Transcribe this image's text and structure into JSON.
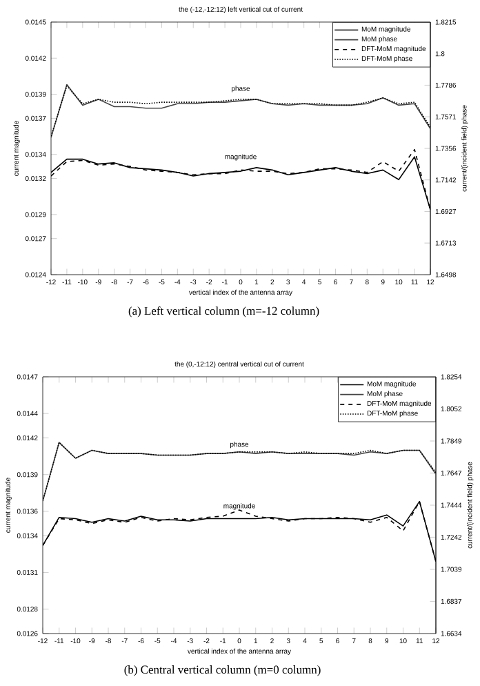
{
  "chart_data": [
    {
      "type": "line",
      "title": "the (-12,-12:12) left vertical cut of current",
      "xlabel": "vertical index of the antenna array",
      "ylabel": "current magnitude",
      "y2label": "current/(incident field) phase",
      "x": [
        -12,
        -11,
        -10,
        -9,
        -8,
        -7,
        -6,
        -5,
        -4,
        -3,
        -2,
        -1,
        0,
        1,
        2,
        3,
        4,
        5,
        6,
        7,
        8,
        9,
        10,
        11,
        12
      ],
      "xlim": [
        -12,
        12
      ],
      "xticks": [
        -12,
        -11,
        -10,
        -9,
        -8,
        -7,
        -6,
        -5,
        -4,
        -3,
        -2,
        -1,
        0,
        1,
        2,
        3,
        4,
        5,
        6,
        7,
        8,
        9,
        10,
        11,
        12
      ],
      "ylim": [
        0.0124,
        0.0145
      ],
      "yticks": [
        0.0124,
        0.0127,
        0.0129,
        0.0132,
        0.0134,
        0.0137,
        0.0139,
        0.0142,
        0.0145
      ],
      "y2lim": [
        1.6498,
        1.8215
      ],
      "y2ticks": [
        1.6498,
        1.6713,
        1.6927,
        1.7142,
        1.7356,
        1.7571,
        1.7786,
        1.8,
        1.8215
      ],
      "legend": "top right",
      "series": [
        {
          "name": "MoM magnitude",
          "color": "#000000",
          "line_style": "solid",
          "axis": "y",
          "values": [
            0.01325,
            0.01336,
            0.01336,
            0.01332,
            0.01333,
            0.01329,
            0.01328,
            0.01327,
            0.01325,
            0.01322,
            0.01324,
            0.01325,
            0.01326,
            0.01329,
            0.01327,
            0.01323,
            0.01325,
            0.01327,
            0.01329,
            0.01326,
            0.01324,
            0.01327,
            0.01319,
            0.01338,
            0.01294
          ]
        },
        {
          "name": "MoM phase",
          "color": "#444444",
          "line_style": "solid",
          "axis": "y2",
          "values": [
            1.743,
            1.779,
            1.765,
            1.769,
            1.764,
            1.764,
            1.763,
            1.763,
            1.766,
            1.766,
            1.767,
            1.767,
            1.768,
            1.769,
            1.766,
            1.765,
            1.766,
            1.765,
            1.765,
            1.765,
            1.766,
            1.77,
            1.765,
            1.766,
            1.749
          ]
        },
        {
          "name": "DFT-MoM magnitude",
          "color": "#000000",
          "line_style": "dashed",
          "axis": "y",
          "values": [
            0.01322,
            0.01334,
            0.01335,
            0.01331,
            0.01332,
            0.0133,
            0.01327,
            0.01326,
            0.01325,
            0.01323,
            0.01324,
            0.01324,
            0.01327,
            0.01326,
            0.01326,
            0.01324,
            0.01325,
            0.01328,
            0.01328,
            0.01327,
            0.01325,
            0.01334,
            0.01326,
            0.01344,
            0.01294
          ]
        },
        {
          "name": "DFT-MoM phase",
          "color": "#000000",
          "line_style": "dotted",
          "axis": "y2",
          "values": [
            1.744,
            1.778,
            1.766,
            1.769,
            1.767,
            1.767,
            1.766,
            1.767,
            1.767,
            1.767,
            1.767,
            1.768,
            1.769,
            1.769,
            1.766,
            1.766,
            1.766,
            1.766,
            1.765,
            1.765,
            1.767,
            1.77,
            1.766,
            1.767,
            1.75
          ]
        }
      ],
      "annotations": [
        "phase",
        "magnitude",
        "(a) Left vertical column (m=-12 column)"
      ]
    },
    {
      "type": "line",
      "title": "the (0,-12:12) central vertical cut of current",
      "xlabel": "vertical index of the antenna array",
      "ylabel": "current magnitude",
      "y2label": "current/(incident field) phase",
      "x": [
        -12,
        -11,
        -10,
        -9,
        -8,
        -7,
        -6,
        -5,
        -4,
        -3,
        -2,
        -1,
        0,
        1,
        2,
        3,
        4,
        5,
        6,
        7,
        8,
        9,
        10,
        11,
        12
      ],
      "xlim": [
        -12,
        12
      ],
      "xticks": [
        -12,
        -11,
        -10,
        -9,
        -8,
        -7,
        -6,
        -5,
        -4,
        -3,
        -2,
        -1,
        0,
        1,
        2,
        3,
        4,
        5,
        6,
        7,
        8,
        9,
        10,
        11,
        12
      ],
      "ylim": [
        0.0126,
        0.0147
      ],
      "yticks": [
        0.0126,
        0.0128,
        0.0131,
        0.0134,
        0.0136,
        0.0139,
        0.0142,
        0.0144,
        0.0147
      ],
      "y2lim": [
        1.6634,
        1.8254
      ],
      "y2ticks": [
        1.6634,
        1.6837,
        1.7039,
        1.7242,
        1.7444,
        1.7647,
        1.7849,
        1.8052,
        1.8254
      ],
      "legend": "top right",
      "series": [
        {
          "name": "MoM magnitude",
          "color": "#000000",
          "line_style": "solid",
          "axis": "y",
          "values": [
            0.01332,
            0.01355,
            0.01354,
            0.01351,
            0.01354,
            0.01352,
            0.01356,
            0.01353,
            0.01353,
            0.01352,
            0.01354,
            0.01354,
            0.01354,
            0.01354,
            0.01355,
            0.01353,
            0.01354,
            0.01354,
            0.01354,
            0.01354,
            0.01353,
            0.01357,
            0.01348,
            0.01368,
            0.01319
          ]
        },
        {
          "name": "MoM phase",
          "color": "#444444",
          "line_style": "solid",
          "axis": "y2",
          "values": [
            1.747,
            1.784,
            1.774,
            1.779,
            1.777,
            1.777,
            1.777,
            1.776,
            1.776,
            1.776,
            1.777,
            1.777,
            1.778,
            1.777,
            1.778,
            1.777,
            1.777,
            1.777,
            1.777,
            1.776,
            1.778,
            1.777,
            1.779,
            1.779,
            1.764
          ]
        },
        {
          "name": "DFT-MoM magnitude",
          "color": "#000000",
          "line_style": "dashed",
          "axis": "y",
          "values": [
            0.01332,
            0.01354,
            0.01353,
            0.0135,
            0.01353,
            0.01351,
            0.01355,
            0.01352,
            0.01354,
            0.01353,
            0.01355,
            0.01356,
            0.01361,
            0.01356,
            0.01354,
            0.01352,
            0.01354,
            0.01354,
            0.01355,
            0.01354,
            0.01351,
            0.01355,
            0.01344,
            0.01368,
            0.01319
          ]
        },
        {
          "name": "DFT-MoM phase",
          "color": "#000000",
          "line_style": "dotted",
          "axis": "y2",
          "values": [
            1.747,
            1.784,
            1.774,
            1.779,
            1.777,
            1.777,
            1.777,
            1.776,
            1.776,
            1.776,
            1.777,
            1.777,
            1.778,
            1.778,
            1.778,
            1.777,
            1.778,
            1.777,
            1.777,
            1.777,
            1.779,
            1.777,
            1.779,
            1.779,
            1.765
          ]
        }
      ],
      "annotations": [
        "phase",
        "magnitude",
        "(b) Central vertical column (m=0 column)"
      ]
    }
  ]
}
